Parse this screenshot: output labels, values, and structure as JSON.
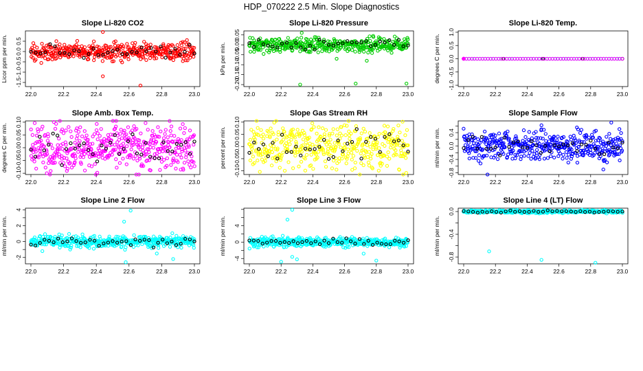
{
  "main_title": "HDP_070222  2.5 Min. Slope Diagnostics",
  "chart_data": [
    {
      "type": "scatter",
      "title": "Slope Li-820 CO2",
      "ylabel": "Licor ppm per min.",
      "color": "#ff0000",
      "xlim": [
        22.0,
        23.0
      ],
      "ylim": [
        -1.7,
        1.0
      ],
      "x_ticks": [
        "22.0",
        "22.2",
        "22.4",
        "22.6",
        "22.8",
        "23.0"
      ],
      "y_ticks": [
        -1.5,
        -1.0,
        -0.5,
        0.0,
        0.5
      ],
      "y_tick_labels": [
        "-1.5",
        "-1.0",
        "-0.5",
        "0.0",
        "0.5"
      ],
      "n_points": 420,
      "center": 0.0,
      "spread": 0.2,
      "outliers": [
        {
          "x": 22.44,
          "y": 0.95
        },
        {
          "x": 22.44,
          "y": -1.2
        },
        {
          "x": 22.67,
          "y": -1.65
        }
      ]
    },
    {
      "type": "scatter",
      "title": "Slope Li-820 Pressure",
      "ylabel": "kPa per min.",
      "color": "#00cc00",
      "xlim": [
        22.0,
        23.0
      ],
      "ylim": [
        -0.21,
        0.07
      ],
      "x_ticks": [
        "22.0",
        "22.2",
        "22.4",
        "22.6",
        "22.8",
        "23.0"
      ],
      "y_ticks": [
        -0.2,
        -0.15,
        -0.1,
        -0.05,
        0.0,
        0.05
      ],
      "y_tick_labels": [
        "-0.20",
        "-0.15",
        "-0.10",
        "-0.05",
        "0.00",
        "0.05"
      ],
      "n_points": 420,
      "center": 0.0,
      "spread": 0.017,
      "outliers": [
        {
          "x": 22.33,
          "y": 0.06
        },
        {
          "x": 22.78,
          "y": 0.045
        },
        {
          "x": 22.32,
          "y": -0.2
        },
        {
          "x": 22.67,
          "y": -0.195
        },
        {
          "x": 22.99,
          "y": -0.195
        },
        {
          "x": 22.74,
          "y": -0.08
        },
        {
          "x": 22.55,
          "y": -0.07
        }
      ]
    },
    {
      "type": "scatter",
      "title": "Slope Li-820 Temp.",
      "ylabel": "degrees C per min.",
      "color": "#00cccc",
      "xlim": [
        22.0,
        23.0
      ],
      "ylim": [
        -1.05,
        1.05
      ],
      "x_ticks": [
        "22.0",
        "22.2",
        "22.4",
        "22.6",
        "22.8",
        "23.0"
      ],
      "y_ticks": [
        -1.0,
        -0.5,
        0.0,
        0.5,
        1.0
      ],
      "y_tick_labels": [
        "-1.0",
        "-0.5",
        "0.0",
        "0.5",
        "1.0"
      ],
      "n_points": 60,
      "center": 0.0,
      "spread": 0.0,
      "outliers": [],
      "overlay_color": "#ff00ff"
    },
    {
      "type": "scatter",
      "title": "Slope Amb. Box Temp.",
      "ylabel": "degrees C per min.",
      "color": "#ff00ff",
      "xlim": [
        22.0,
        23.0
      ],
      "ylim": [
        -0.105,
        0.105
      ],
      "x_ticks": [
        "22.0",
        "22.2",
        "22.4",
        "22.6",
        "22.8",
        "23.0"
      ],
      "y_ticks": [
        -0.1,
        -0.05,
        0.0,
        0.05,
        0.1
      ],
      "y_tick_labels": [
        "-0.10",
        "-0.05",
        "0.00",
        "0.05",
        "0.10"
      ],
      "n_points": 460,
      "center": 0.0,
      "spread": 0.045,
      "outliers": []
    },
    {
      "type": "scatter",
      "title": "Slope Gas Stream RH",
      "ylabel": "percent per min.",
      "color": "#ffff00",
      "xlim": [
        22.0,
        23.0
      ],
      "ylim": [
        -0.115,
        0.105
      ],
      "x_ticks": [
        "22.0",
        "22.2",
        "22.4",
        "22.6",
        "22.8",
        "23.0"
      ],
      "y_ticks": [
        -0.1,
        -0.05,
        0.0,
        0.05,
        0.1
      ],
      "y_tick_labels": [
        "-0.10",
        "-0.05",
        "0.00",
        "0.05",
        "0.10"
      ],
      "n_points": 420,
      "center": 0.0,
      "spread": 0.045,
      "outliers": []
    },
    {
      "type": "scatter",
      "title": "Slope Sample Flow",
      "ylabel": "ml/min per min.",
      "color": "#0000ff",
      "xlim": [
        22.0,
        23.0
      ],
      "ylim": [
        -0.85,
        0.75
      ],
      "x_ticks": [
        "22.0",
        "22.2",
        "22.4",
        "22.6",
        "22.8",
        "23.0"
      ],
      "y_ticks": [
        -0.8,
        -0.6,
        -0.4,
        -0.2,
        0.0,
        0.2,
        0.4,
        0.6
      ],
      "y_tick_labels": [
        "-0.8",
        "",
        "-0.4",
        "",
        "0.0",
        "",
        "0.4",
        ""
      ],
      "n_points": 430,
      "center": 0.0,
      "spread": 0.22,
      "outliers": [
        {
          "x": 22.93,
          "y": 0.7
        },
        {
          "x": 22.15,
          "y": -0.85
        },
        {
          "x": 22.88,
          "y": -0.7
        },
        {
          "x": 22.49,
          "y": 0.62
        }
      ]
    },
    {
      "type": "scatter",
      "title": "Slope Line 2 Flow",
      "ylabel": "ml/min per min.",
      "color": "#00ffff",
      "xlim": [
        22.0,
        23.0
      ],
      "ylim": [
        -2.8,
        4.2
      ],
      "x_ticks": [
        "22.0",
        "22.2",
        "22.4",
        "22.6",
        "22.8",
        "23.0"
      ],
      "y_ticks": [
        -2,
        -1,
        0,
        1,
        2,
        3,
        4
      ],
      "y_tick_labels": [
        "-2",
        "",
        "0",
        "",
        "2",
        "",
        "4"
      ],
      "n_points": 440,
      "center": 0.0,
      "spread": 0.35,
      "outliers": [
        {
          "x": 22.61,
          "y": 3.9
        },
        {
          "x": 22.58,
          "y": -2.6
        },
        {
          "x": 22.57,
          "y": 2.5
        },
        {
          "x": 22.77,
          "y": -1.5
        },
        {
          "x": 22.87,
          "y": -2.2
        },
        {
          "x": 22.07,
          "y": -1.2
        },
        {
          "x": 22.24,
          "y": -1.0
        }
      ]
    },
    {
      "type": "scatter",
      "title": "Slope Line 3 Flow",
      "ylabel": "ml/min per min.",
      "color": "#00ffff",
      "xlim": [
        22.0,
        23.0
      ],
      "ylim": [
        -5.3,
        8.3
      ],
      "x_ticks": [
        "22.0",
        "22.2",
        "22.4",
        "22.6",
        "22.8",
        "23.0"
      ],
      "y_ticks": [
        -4,
        -2,
        0,
        2,
        4,
        6,
        8
      ],
      "y_tick_labels": [
        "-4",
        "",
        "0",
        "",
        "4",
        "",
        ""
      ],
      "n_points": 440,
      "center": 0.0,
      "spread": 0.55,
      "outliers": [
        {
          "x": 22.27,
          "y": 7.9
        },
        {
          "x": 22.24,
          "y": 5.5
        },
        {
          "x": 22.2,
          "y": -4.8
        },
        {
          "x": 22.3,
          "y": -4.2
        },
        {
          "x": 22.27,
          "y": -3.6
        },
        {
          "x": 22.8,
          "y": -4.5
        },
        {
          "x": 22.72,
          "y": -2.8
        }
      ]
    },
    {
      "type": "scatter",
      "title": "Slope Line 4 (LT) Flow",
      "ylabel": "ml/min per min.",
      "color": "#00ffff",
      "xlim": [
        22.0,
        23.0
      ],
      "ylim": [
        -0.92,
        0.06
      ],
      "x_ticks": [
        "22.0",
        "22.2",
        "22.4",
        "22.6",
        "22.8",
        "23.0"
      ],
      "y_ticks": [
        -0.8,
        -0.6,
        -0.4,
        -0.2,
        0.0
      ],
      "y_tick_labels": [
        "-0.8",
        "",
        "-0.4",
        "",
        "0.0"
      ],
      "n_points": 420,
      "center": 0.0,
      "spread": 0.012,
      "outliers": [
        {
          "x": 22.16,
          "y": -0.7
        },
        {
          "x": 22.49,
          "y": -0.85
        },
        {
          "x": 22.83,
          "y": -0.9
        }
      ]
    }
  ]
}
